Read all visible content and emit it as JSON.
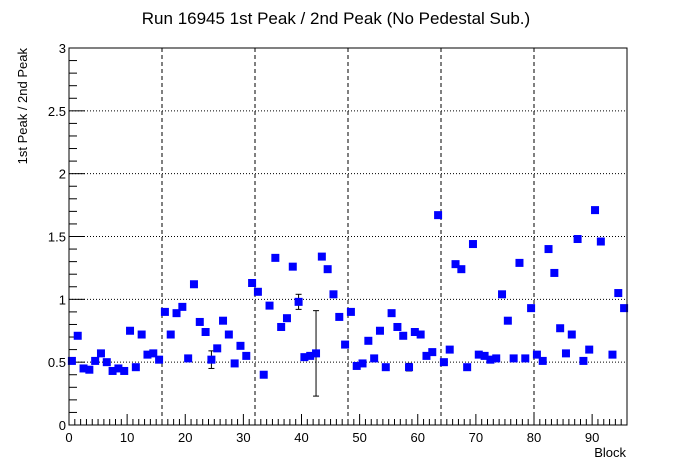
{
  "chart_data": {
    "type": "scatter",
    "title": "Run 16945 1st Peak / 2nd Peak (No Pedestal Sub.)",
    "xlabel": "Block",
    "ylabel": "1st Peak / 2nd Peak",
    "xlim": [
      0,
      96
    ],
    "ylim": [
      0,
      3
    ],
    "x_ticks": [
      0,
      10,
      20,
      30,
      40,
      50,
      60,
      70,
      80,
      90
    ],
    "y_ticks": [
      0,
      0.5,
      1,
      1.5,
      2,
      2.5,
      3
    ],
    "x_tick_labels": [
      "0",
      "10",
      "20",
      "30",
      "40",
      "50",
      "60",
      "70",
      "80",
      "90"
    ],
    "y_tick_labels": [
      "0",
      "0.5",
      "1",
      "1.5",
      "2",
      "2.5",
      "3"
    ],
    "vertical_dashed_lines": [
      16,
      32,
      48,
      64,
      80
    ],
    "horizontal_dotted_lines": [
      0.5,
      1,
      1.5,
      2,
      2.5
    ],
    "legend": "none",
    "marker_color": "#0000ff",
    "series": [
      {
        "points": [
          {
            "x": 0.5,
            "y": 0.51
          },
          {
            "x": 1.5,
            "y": 0.71
          },
          {
            "x": 2.5,
            "y": 0.45
          },
          {
            "x": 3.5,
            "y": 0.44
          },
          {
            "x": 4.5,
            "y": 0.51
          },
          {
            "x": 5.5,
            "y": 0.57
          },
          {
            "x": 6.5,
            "y": 0.5
          },
          {
            "x": 7.5,
            "y": 0.43
          },
          {
            "x": 8.5,
            "y": 0.45
          },
          {
            "x": 9.5,
            "y": 0.43
          },
          {
            "x": 10.5,
            "y": 0.75
          },
          {
            "x": 11.5,
            "y": 0.46
          },
          {
            "x": 12.5,
            "y": 0.72
          },
          {
            "x": 13.5,
            "y": 0.56
          },
          {
            "x": 14.5,
            "y": 0.57
          },
          {
            "x": 15.5,
            "y": 0.52
          },
          {
            "x": 16.5,
            "y": 0.9
          },
          {
            "x": 17.5,
            "y": 0.72
          },
          {
            "x": 18.5,
            "y": 0.89
          },
          {
            "x": 19.5,
            "y": 0.94
          },
          {
            "x": 20.5,
            "y": 0.53
          },
          {
            "x": 21.5,
            "y": 1.12
          },
          {
            "x": 22.5,
            "y": 0.82
          },
          {
            "x": 23.5,
            "y": 0.74
          },
          {
            "x": 24.5,
            "y": 0.52,
            "err": 0.07
          },
          {
            "x": 25.5,
            "y": 0.61
          },
          {
            "x": 26.5,
            "y": 0.83
          },
          {
            "x": 27.5,
            "y": 0.72
          },
          {
            "x": 28.5,
            "y": 0.49
          },
          {
            "x": 29.5,
            "y": 0.63
          },
          {
            "x": 30.5,
            "y": 0.55
          },
          {
            "x": 31.5,
            "y": 1.13
          },
          {
            "x": 32.5,
            "y": 1.06
          },
          {
            "x": 33.5,
            "y": 0.4
          },
          {
            "x": 34.5,
            "y": 0.95
          },
          {
            "x": 35.5,
            "y": 1.33
          },
          {
            "x": 36.5,
            "y": 0.78
          },
          {
            "x": 37.5,
            "y": 0.85
          },
          {
            "x": 38.5,
            "y": 1.26
          },
          {
            "x": 39.5,
            "y": 0.98,
            "err": 0.06
          },
          {
            "x": 40.5,
            "y": 0.54
          },
          {
            "x": 41.5,
            "y": 0.55
          },
          {
            "x": 42.5,
            "y": 0.57,
            "err": 0.34
          },
          {
            "x": 43.5,
            "y": 1.34
          },
          {
            "x": 44.5,
            "y": 1.24
          },
          {
            "x": 45.5,
            "y": 1.04
          },
          {
            "x": 46.5,
            "y": 0.86
          },
          {
            "x": 47.5,
            "y": 0.64
          },
          {
            "x": 48.5,
            "y": 0.9
          },
          {
            "x": 49.5,
            "y": 0.47
          },
          {
            "x": 50.5,
            "y": 0.49
          },
          {
            "x": 51.5,
            "y": 0.67
          },
          {
            "x": 52.5,
            "y": 0.53
          },
          {
            "x": 53.5,
            "y": 0.75
          },
          {
            "x": 54.5,
            "y": 0.46
          },
          {
            "x": 55.5,
            "y": 0.89
          },
          {
            "x": 56.5,
            "y": 0.78
          },
          {
            "x": 57.5,
            "y": 0.71
          },
          {
            "x": 58.5,
            "y": 0.46,
            "err": 0.03
          },
          {
            "x": 59.5,
            "y": 0.74
          },
          {
            "x": 60.5,
            "y": 0.72
          },
          {
            "x": 61.5,
            "y": 0.55
          },
          {
            "x": 62.5,
            "y": 0.58
          },
          {
            "x": 63.5,
            "y": 1.67
          },
          {
            "x": 64.5,
            "y": 0.5
          },
          {
            "x": 65.5,
            "y": 0.6
          },
          {
            "x": 66.5,
            "y": 1.28
          },
          {
            "x": 67.5,
            "y": 1.24
          },
          {
            "x": 68.5,
            "y": 0.46
          },
          {
            "x": 69.5,
            "y": 1.44
          },
          {
            "x": 70.5,
            "y": 0.56
          },
          {
            "x": 71.5,
            "y": 0.55
          },
          {
            "x": 72.5,
            "y": 0.52
          },
          {
            "x": 73.5,
            "y": 0.53
          },
          {
            "x": 74.5,
            "y": 1.04
          },
          {
            "x": 75.5,
            "y": 0.83
          },
          {
            "x": 76.5,
            "y": 0.53
          },
          {
            "x": 77.5,
            "y": 1.29
          },
          {
            "x": 78.5,
            "y": 0.53
          },
          {
            "x": 79.5,
            "y": 0.93
          },
          {
            "x": 80.5,
            "y": 0.56
          },
          {
            "x": 81.5,
            "y": 0.51
          },
          {
            "x": 82.5,
            "y": 1.4
          },
          {
            "x": 83.5,
            "y": 1.21
          },
          {
            "x": 84.5,
            "y": 0.77
          },
          {
            "x": 85.5,
            "y": 0.57
          },
          {
            "x": 86.5,
            "y": 0.72
          },
          {
            "x": 87.5,
            "y": 1.48
          },
          {
            "x": 88.5,
            "y": 0.51
          },
          {
            "x": 89.5,
            "y": 0.6
          },
          {
            "x": 90.5,
            "y": 1.71
          },
          {
            "x": 91.5,
            "y": 1.46
          },
          {
            "x": 93.5,
            "y": 0.56
          },
          {
            "x": 94.5,
            "y": 1.05
          },
          {
            "x": 95.5,
            "y": 0.93
          }
        ]
      }
    ]
  }
}
